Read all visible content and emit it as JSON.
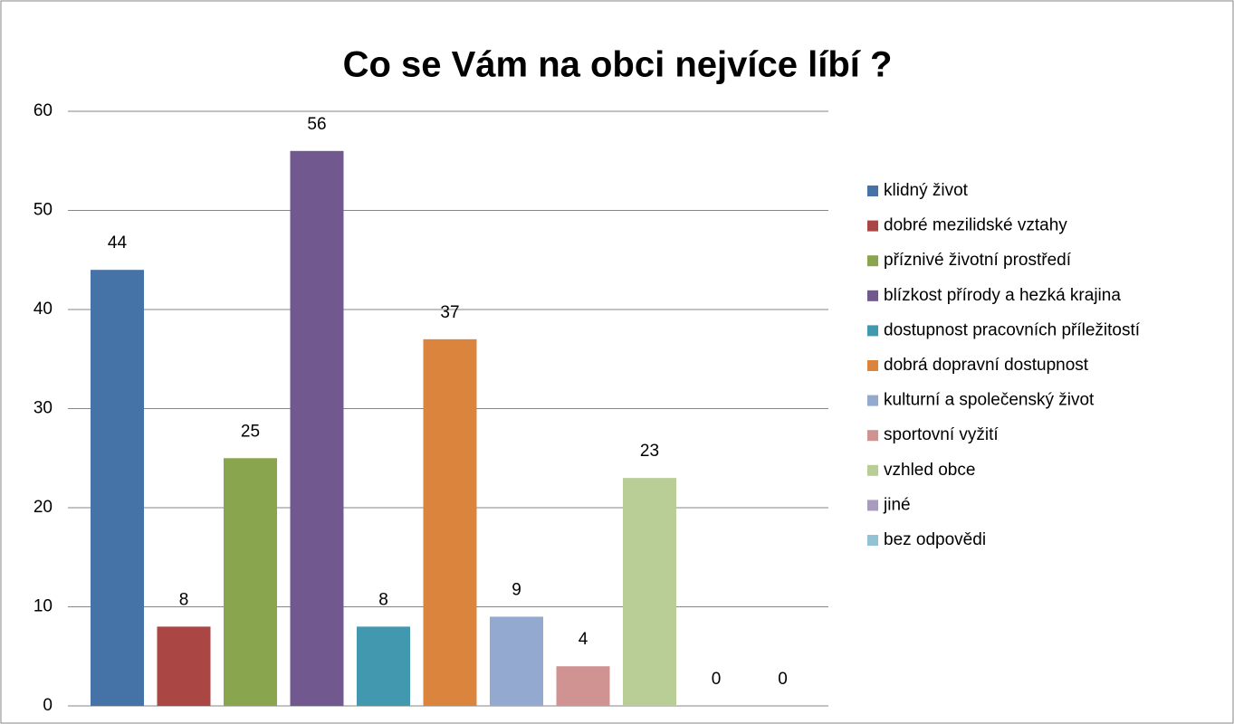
{
  "chart_data": {
    "type": "bar",
    "title": "Co se Vám na obci nejvíce líbí ?",
    "series": [
      {
        "name": "klidný život",
        "color": "#4572a7",
        "values": [
          44
        ]
      },
      {
        "name": "dobré mezilidské vztahy",
        "color": "#aa4643",
        "values": [
          8
        ]
      },
      {
        "name": "příznivé životní prostředí",
        "color": "#89a54e",
        "values": [
          25
        ]
      },
      {
        "name": "blízkost přírody a hezká krajina",
        "color": "#71588f",
        "values": [
          56
        ]
      },
      {
        "name": "dostupnost pracovních příležitostí",
        "color": "#4198af",
        "values": [
          8
        ]
      },
      {
        "name": "dobrá dopravní dostupnost",
        "color": "#db843d",
        "values": [
          37
        ]
      },
      {
        "name": "kulturní a společenský život",
        "color": "#93a9cf",
        "values": [
          9
        ]
      },
      {
        "name": "sportovní vyžití",
        "color": "#d19392",
        "values": [
          4
        ]
      },
      {
        "name": "vzhled obce",
        "color": "#b9cd96",
        "values": [
          23
        ]
      },
      {
        "name": "jiné",
        "color": "#a99bbd",
        "values": [
          0
        ]
      },
      {
        "name": "bez odpovědi",
        "color": "#91c3d5",
        "values": [
          0
        ]
      }
    ],
    "ylim": [
      0,
      60
    ],
    "yticks": [
      0,
      10,
      20,
      30,
      40,
      50,
      60
    ],
    "grid": true,
    "legend": "right"
  }
}
